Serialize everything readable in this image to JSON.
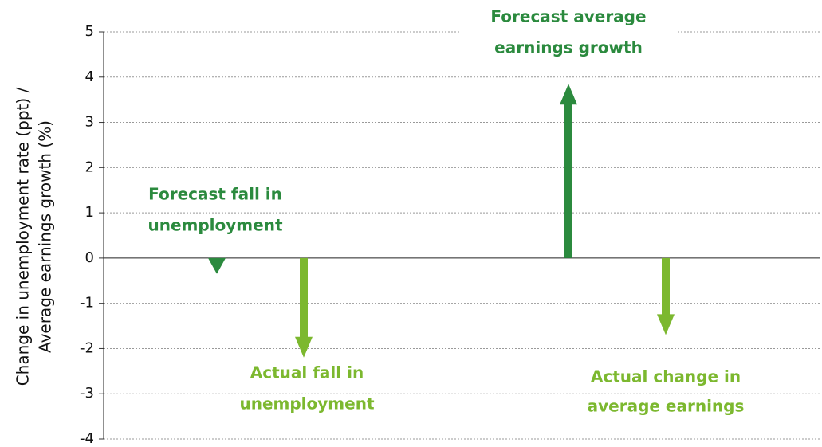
{
  "chart_data": {
    "type": "arrow",
    "ylabel": [
      "Change in unemployment rate (ppt) /",
      "Average earnings growth (%)"
    ],
    "ylim": [
      -4,
      5
    ],
    "yticks": [
      -4,
      -3,
      -2,
      -1,
      0,
      1,
      2,
      3,
      4,
      5
    ],
    "grid": true,
    "arrows": [
      {
        "label": [
          "Forecast fall in",
          "unemployment"
        ],
        "value": -0.35,
        "color": "#2b8a3e"
      },
      {
        "label": [
          "Actual fall in",
          "unemployment"
        ],
        "value": -2.2,
        "color": "#7cb82f"
      },
      {
        "label": [
          "Forecast average",
          "earnings growth"
        ],
        "value": 3.85,
        "color": "#2b8a3e"
      },
      {
        "label": [
          "Actual change in",
          "average earnings"
        ],
        "value": -1.7,
        "color": "#7cb82f"
      }
    ]
  }
}
